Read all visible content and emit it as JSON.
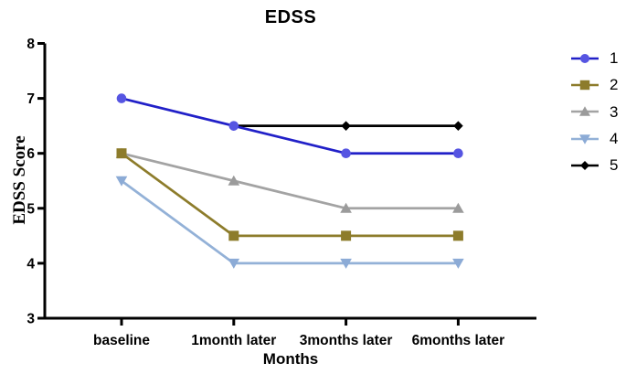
{
  "chart_data": {
    "type": "line",
    "title": "EDSS",
    "xlabel": "Months",
    "ylabel": "EDSS Score",
    "categories": [
      "baseline",
      "1month later",
      "3months later",
      "6months later"
    ],
    "y_ticks": [
      3,
      4,
      5,
      6,
      7,
      8
    ],
    "ylim": [
      3,
      8
    ],
    "grid": false,
    "legend_position": "right",
    "axis_color": "#000000",
    "series": [
      {
        "name": "1",
        "marker": "circle",
        "line_color": "#2120c8",
        "marker_color": "#5655e2",
        "values": [
          7,
          6.5,
          6,
          6
        ]
      },
      {
        "name": "2",
        "marker": "square",
        "line_color": "#8d7c2b",
        "marker_color": "#8d7c2b",
        "values": [
          6,
          4.5,
          4.5,
          4.5
        ]
      },
      {
        "name": "3",
        "marker": "triangle-up",
        "line_color": "#a3a3a3",
        "marker_color": "#9b9b9b",
        "values": [
          6,
          5.5,
          5,
          5
        ]
      },
      {
        "name": "4",
        "marker": "triangle-down",
        "line_color": "#93b1d7",
        "marker_color": "#8cabd6",
        "values": [
          5.5,
          4,
          4,
          4
        ]
      },
      {
        "name": "5",
        "marker": "diamond",
        "line_color": "#000000",
        "marker_color": "#000000",
        "values": [
          null,
          6.5,
          6.5,
          6.5
        ]
      }
    ]
  }
}
